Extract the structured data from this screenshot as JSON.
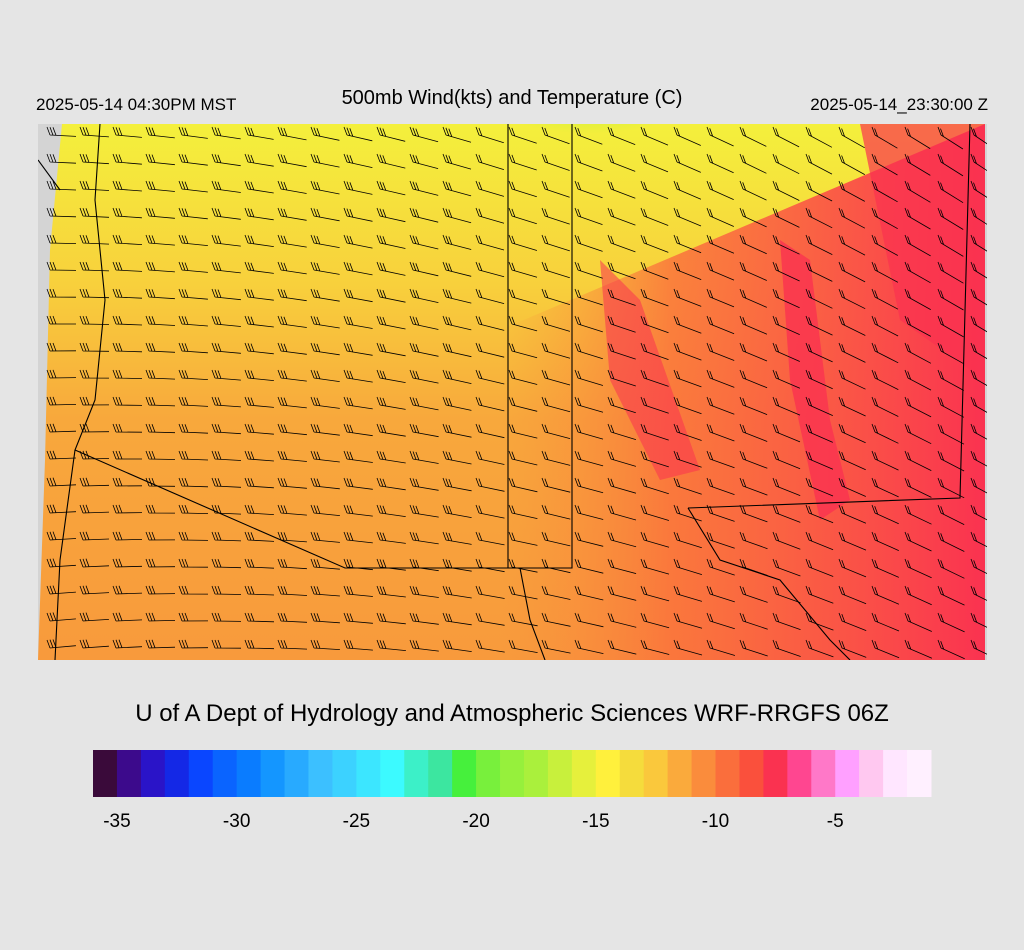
{
  "header": {
    "local_time": "2025-05-14 04:30PM MST",
    "title": "500mb Wind(kts) and Temperature (C)",
    "utc_time": "2025-05-14_23:30:00 Z"
  },
  "credit": "U of A Dept of Hydrology and Atmospheric Sciences WRF-RRGFS 06Z",
  "colorbar": {
    "range": [
      -36,
      -1
    ],
    "ticks": [
      -35,
      -30,
      -25,
      -20,
      -15,
      -10,
      -5
    ],
    "colors": [
      "#3a0a3a",
      "#3c0a8c",
      "#2a14c8",
      "#1428e6",
      "#0a46ff",
      "#0a64ff",
      "#0a7cff",
      "#1496ff",
      "#28aaff",
      "#3cc0ff",
      "#3cd2ff",
      "#3ce6ff",
      "#3cfaff",
      "#3cf0c8",
      "#3ce6a0",
      "#46f03c",
      "#78f03c",
      "#96f03c",
      "#aaf03c",
      "#c8f03c",
      "#e6f03c",
      "#fff03c",
      "#f5dc3c",
      "#fac83c",
      "#faaa3c",
      "#fa8c3c",
      "#fa6e3c",
      "#fa503c",
      "#fa3250",
      "#ff4690",
      "#ff78c8",
      "#ffa0ff",
      "#ffc8f0",
      "#ffe6ff",
      "#fff0ff"
    ]
  }
}
